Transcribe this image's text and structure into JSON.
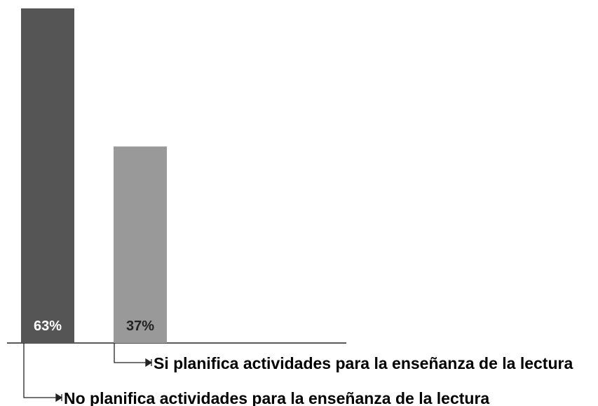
{
  "chart_data": {
    "type": "bar",
    "categories": [
      "No planifica actividades para la enseñanza de la lectura",
      "Si planifica actividades para la enseñanza de la lectura"
    ],
    "values": [
      63,
      37
    ],
    "value_labels": [
      "63%",
      "37%"
    ],
    "ylim": [
      0,
      63
    ],
    "grid": false,
    "legend": "none",
    "title": "",
    "xlabel": "",
    "ylabel": ""
  },
  "colors": {
    "bars": [
      "#555555",
      "#999999"
    ],
    "value_label_colors": [
      "#ffffff",
      "#222222"
    ],
    "axis": "#222222",
    "leader": "#222222"
  }
}
